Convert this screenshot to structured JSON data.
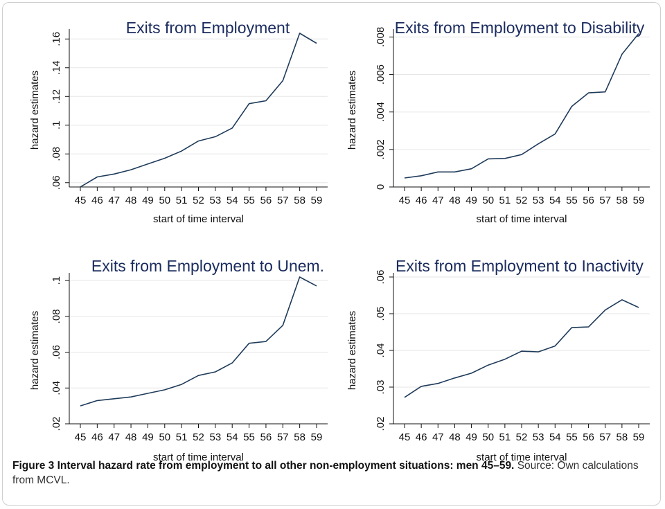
{
  "figure": {
    "label": "Figure 3",
    "caption_bold": "Interval hazard rate from employment to all other non-employment situations: men 45–59.",
    "caption_source": "Source: Own calculations from MCVL."
  },
  "colors": {
    "line": "#1f3b5a",
    "title": "#1a2b5e",
    "grid": "#e6e6e6"
  },
  "chart_data": [
    {
      "type": "line",
      "title": "Exits from Employment",
      "xlabel": "start of time interval",
      "ylabel": "hazard estimates",
      "x": [
        45,
        46,
        47,
        48,
        49,
        50,
        51,
        52,
        53,
        54,
        55,
        56,
        57,
        58,
        59
      ],
      "series": [
        {
          "values": [
            0.057,
            0.064,
            0.066,
            0.069,
            0.073,
            0.077,
            0.082,
            0.089,
            0.092,
            0.098,
            0.115,
            0.117,
            0.131,
            0.164,
            0.157
          ]
        }
      ],
      "ylim": [
        0.057,
        0.164
      ],
      "yticks": [
        0.06,
        0.08,
        0.1,
        0.12,
        0.14,
        0.16
      ],
      "ytick_labels": [
        ".06",
        ".08",
        ".1",
        ".12",
        ".14",
        ".16"
      ],
      "grid": true
    },
    {
      "type": "line",
      "title": "Exits from Employment to Disability",
      "xlabel": "start of time interval",
      "ylabel": "hazard estimates",
      "x": [
        45,
        46,
        47,
        48,
        49,
        50,
        51,
        52,
        53,
        54,
        55,
        56,
        57,
        58,
        59
      ],
      "series": [
        {
          "values": [
            0.00048,
            0.0006,
            0.0008,
            0.0008,
            0.00097,
            0.0015,
            0.00152,
            0.00173,
            0.0023,
            0.00283,
            0.0043,
            0.00502,
            0.00507,
            0.00708,
            0.00818
          ]
        }
      ],
      "ylim": [
        0,
        0.0082
      ],
      "yticks": [
        0,
        0.002,
        0.004,
        0.006,
        0.008
      ],
      "ytick_labels": [
        "0",
        ".002",
        ".004",
        ".006",
        ".008"
      ],
      "grid": true
    },
    {
      "type": "line",
      "title": "Exits from Employment to Unem.",
      "xlabel": "start of time interval",
      "ylabel": "hazard estimates",
      "x": [
        45,
        46,
        47,
        48,
        49,
        50,
        51,
        52,
        53,
        54,
        55,
        56,
        57,
        58,
        59
      ],
      "series": [
        {
          "values": [
            0.03,
            0.033,
            0.034,
            0.035,
            0.037,
            0.039,
            0.042,
            0.047,
            0.049,
            0.054,
            0.065,
            0.066,
            0.075,
            0.102,
            0.097
          ]
        }
      ],
      "ylim": [
        0.02,
        0.102
      ],
      "yticks": [
        0.02,
        0.04,
        0.06,
        0.08,
        0.1
      ],
      "ytick_labels": [
        ".02",
        ".04",
        ".06",
        ".08",
        ".1"
      ],
      "grid": true
    },
    {
      "type": "line",
      "title": "Exits from Employment to Inactivity",
      "xlabel": "start of time interval",
      "ylabel": "hazard estimates",
      "x": [
        45,
        46,
        47,
        48,
        49,
        50,
        51,
        52,
        53,
        54,
        55,
        56,
        57,
        58,
        59
      ],
      "series": [
        {
          "values": [
            0.0272,
            0.0302,
            0.031,
            0.0325,
            0.0338,
            0.036,
            0.0376,
            0.0398,
            0.0396,
            0.0412,
            0.0462,
            0.0464,
            0.051,
            0.0538,
            0.0517
          ]
        }
      ],
      "ylim": [
        0.02,
        0.06
      ],
      "yticks": [
        0.02,
        0.03,
        0.04,
        0.05,
        0.06
      ],
      "ytick_labels": [
        ".02",
        ".03",
        ".04",
        ".05",
        ".06"
      ],
      "grid": true
    }
  ]
}
